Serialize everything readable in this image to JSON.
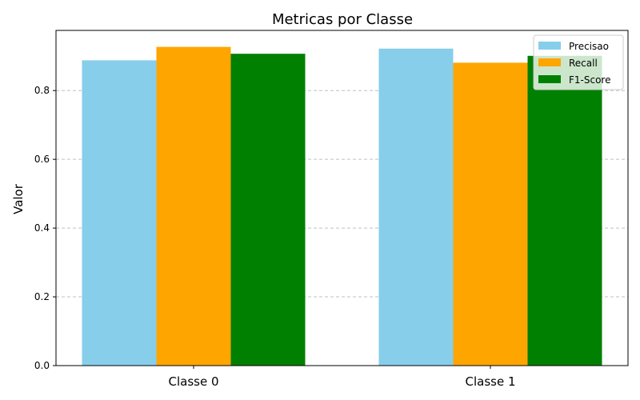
{
  "chart_data": {
    "type": "bar",
    "title": "Metricas por Classe",
    "xlabel": "",
    "ylabel": "Valor",
    "categories": [
      "Classe 0",
      "Classe 1"
    ],
    "series": [
      {
        "name": "Precisao",
        "values": [
          0.888,
          0.922
        ],
        "color": "#87ceeb"
      },
      {
        "name": "Recall",
        "values": [
          0.927,
          0.881
        ],
        "color": "#ffa500"
      },
      {
        "name": "F1-Score",
        "values": [
          0.907,
          0.901
        ],
        "color": "#008000"
      }
    ],
    "ylim": [
      0,
      0.975
    ],
    "yticks": [
      "0.0",
      "0.2",
      "0.4",
      "0.6",
      "0.8"
    ],
    "grid": "y-dashed",
    "legend_position": "top-right"
  }
}
